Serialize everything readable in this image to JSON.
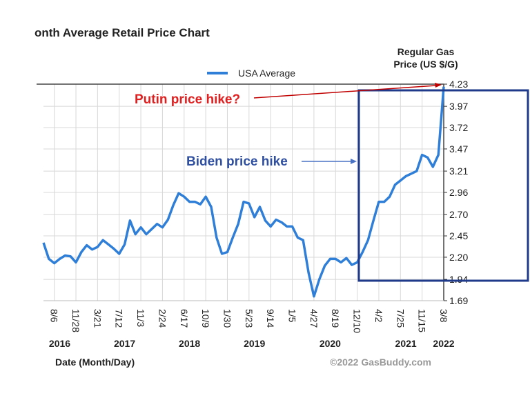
{
  "chart_data": {
    "type": "line",
    "title": "onth Average Retail Price Chart",
    "y_axis_label": "Regular Gas Price (US $/G)",
    "x_axis_label": "Date (Month/Day)",
    "watermark": "©2022 GasBuddy.com",
    "annotations": [
      "Putin price hike?",
      "Biden price hike"
    ],
    "categories": [
      null,
      null,
      "8/6",
      null,
      null,
      null,
      "11/28",
      null,
      null,
      null,
      "3/21",
      null,
      null,
      null,
      "7/12",
      null,
      null,
      null,
      "11/3",
      null,
      null,
      null,
      "2/24",
      null,
      null,
      null,
      "6/17",
      null,
      null,
      null,
      "10/9",
      null,
      null,
      null,
      "1/30",
      null,
      null,
      null,
      "5/23",
      null,
      null,
      null,
      "9/14",
      null,
      null,
      null,
      "1/5",
      null,
      null,
      null,
      "4/27",
      null,
      null,
      null,
      "8/19",
      null,
      null,
      null,
      "12/10",
      null,
      null,
      null,
      "4/2",
      null,
      null,
      null,
      "7/25",
      null,
      null,
      null,
      "11/15",
      null,
      null,
      null,
      "3/8"
    ],
    "years": [
      null,
      null,
      null,
      "2016",
      null,
      null,
      null,
      null,
      null,
      null,
      null,
      null,
      null,
      null,
      null,
      "2017",
      null,
      null,
      null,
      null,
      null,
      null,
      null,
      null,
      null,
      null,
      null,
      "2018",
      null,
      null,
      null,
      null,
      null,
      null,
      null,
      null,
      null,
      null,
      null,
      "2019",
      null,
      null,
      null,
      null,
      null,
      null,
      null,
      null,
      null,
      null,
      null,
      null,
      null,
      "2020",
      null,
      null,
      null,
      null,
      null,
      null,
      null,
      null,
      null,
      null,
      null,
      null,
      null,
      "2021",
      null,
      null,
      null,
      null,
      null,
      null,
      "2022"
    ],
    "series": [
      {
        "name": "USA Average",
        "color": "#2f7fd8",
        "values": [
          2.37,
          2.18,
          2.13,
          2.18,
          2.22,
          2.21,
          2.14,
          2.26,
          2.34,
          2.29,
          2.32,
          2.4,
          2.35,
          2.3,
          2.24,
          2.35,
          2.63,
          2.47,
          2.55,
          2.47,
          2.53,
          2.59,
          2.55,
          2.64,
          2.81,
          2.95,
          2.91,
          2.85,
          2.85,
          2.82,
          2.91,
          2.79,
          2.43,
          2.24,
          2.26,
          2.43,
          2.59,
          2.85,
          2.83,
          2.67,
          2.79,
          2.63,
          2.56,
          2.64,
          2.61,
          2.56,
          2.56,
          2.43,
          2.4,
          2.02,
          1.74,
          1.94,
          2.1,
          2.18,
          2.18,
          2.14,
          2.19,
          2.11,
          2.14,
          2.26,
          2.4,
          2.63,
          2.85,
          2.85,
          2.91,
          3.05,
          3.1,
          3.15,
          3.18,
          3.21,
          3.4,
          3.37,
          3.26,
          3.4,
          4.2
        ]
      }
    ],
    "ylim": [
      1.69,
      4.23
    ],
    "yticks": [
      1.69,
      1.94,
      {
        "value": 2.2,
        "label": "2.20"
      },
      2.45,
      {
        "value": 2.7,
        "label": "2.70"
      },
      2.96,
      3.21,
      3.47,
      3.72,
      3.97,
      4.23
    ],
    "grid": true
  }
}
